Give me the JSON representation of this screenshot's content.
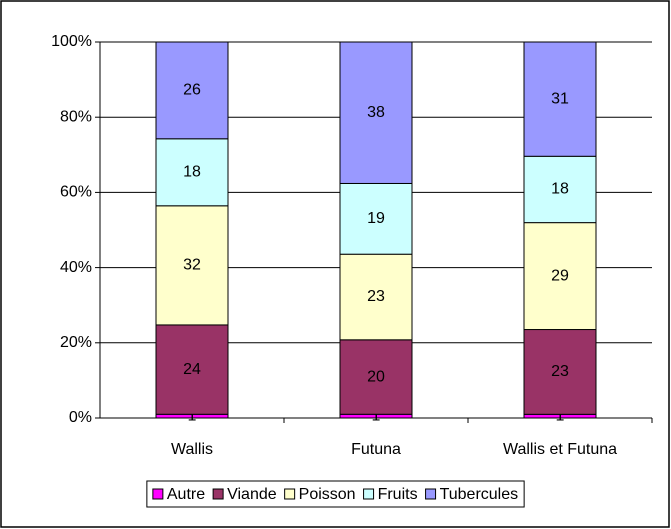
{
  "chart_data": {
    "type": "stacked_bar_100",
    "categories": [
      "Wallis",
      "Futuna",
      "Wallis et Futuna"
    ],
    "series": [
      {
        "name": "Autre",
        "color": "#ff00ff",
        "values": [
          1,
          1,
          1
        ]
      },
      {
        "name": "Viande",
        "color": "#993366",
        "values": [
          24,
          20,
          23
        ]
      },
      {
        "name": "Poisson",
        "color": "#ffffcc",
        "values": [
          32,
          23,
          29
        ]
      },
      {
        "name": "Fruits",
        "color": "#ccffff",
        "values": [
          18,
          19,
          18
        ]
      },
      {
        "name": "Tubercules",
        "color": "#9999ff",
        "values": [
          26,
          38,
          31
        ]
      }
    ],
    "ylim": [
      0,
      100
    ],
    "yticks": [
      {
        "value": 0,
        "label": "0%"
      },
      {
        "value": 20,
        "label": "20%"
      },
      {
        "value": 40,
        "label": "40%"
      },
      {
        "value": 60,
        "label": "60%"
      },
      {
        "value": 80,
        "label": "80%"
      },
      {
        "value": 100,
        "label": "100%"
      }
    ],
    "grid": true,
    "legend": "bottom"
  }
}
